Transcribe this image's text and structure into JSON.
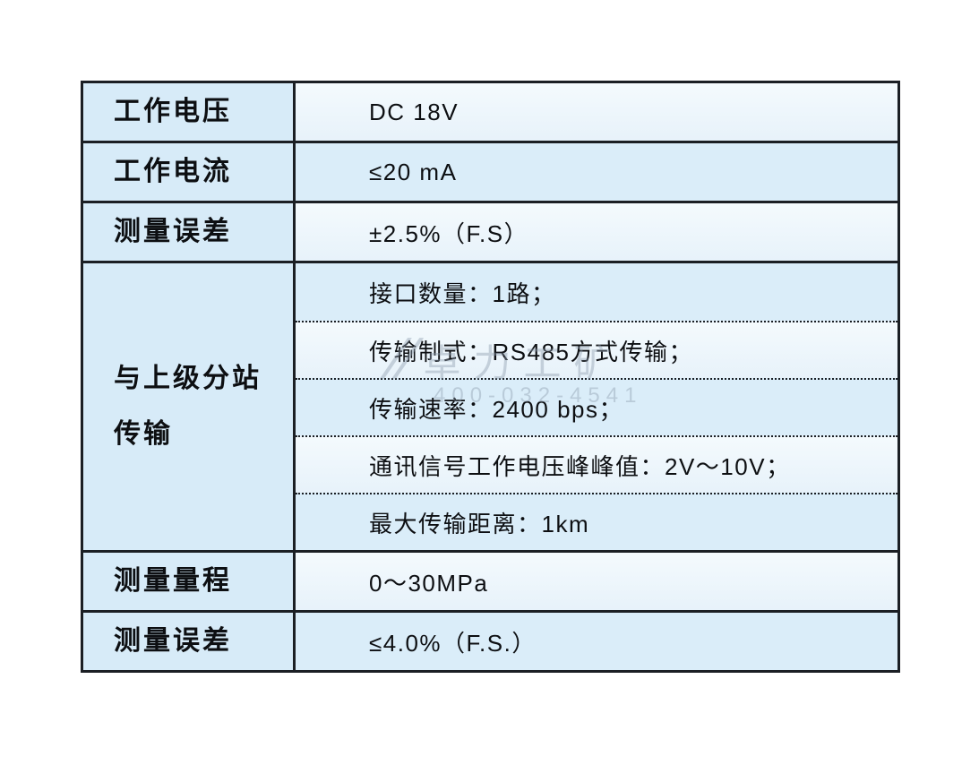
{
  "table": {
    "rows": [
      {
        "label": "工作电压",
        "value": "DC 18V"
      },
      {
        "label": "工作电流",
        "value": "≤20 mA"
      },
      {
        "label": "测量误差",
        "value": "±2.5%（F.S）"
      },
      {
        "label": "与上级分站传输",
        "label_lines": [
          "与上级分站",
          "传输"
        ],
        "values": [
          "接口数量：1路；",
          "传输制式：RS485方式传输；",
          "传输速率：2400 bps；",
          "通讯信号工作电压峰峰值：2V～10V；",
          "最大传输距离：1km"
        ]
      },
      {
        "label": "测量量程",
        "value": "0～30MPa"
      },
      {
        "label": "测量误差",
        "value": "≤4.0%（F.S.）"
      }
    ]
  },
  "watermark": {
    "logo": "//",
    "line1": "卓力工矿",
    "line2": "400-032-4541"
  },
  "colors": {
    "border": "#1b1f24",
    "label_cell_bg": "#d7ebf8",
    "value_row_blue": "#daedf9",
    "value_row_light": "#f4fafd",
    "watermark_gray": "#8e9dae",
    "page_bg": "#ffffff"
  }
}
